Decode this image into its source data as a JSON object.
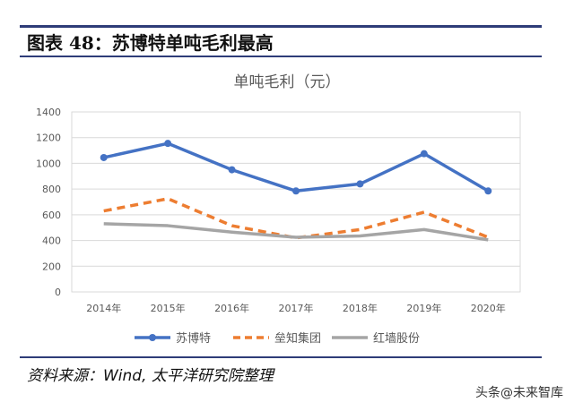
{
  "header": {
    "title": "图表 48：苏博特单吨毛利最高"
  },
  "footer": {
    "source": "资料来源：Wind, 太平洋研究院整理",
    "watermark": "头条@未来智库"
  },
  "chart_data": {
    "type": "line",
    "title": "单吨毛利（元）",
    "categories": [
      "2014年",
      "2015年",
      "2016年",
      "2017年",
      "2018年",
      "2019年",
      "2020年"
    ],
    "ylim": [
      0,
      1400
    ],
    "yticks": [
      0,
      200,
      400,
      600,
      800,
      1000,
      1200,
      1400
    ],
    "grid": true,
    "legend": "bottom",
    "series": [
      {
        "name": "苏博特",
        "values": [
          1045,
          1155,
          950,
          785,
          840,
          1075,
          785
        ],
        "color": "#4472c4",
        "style": "solid-marker"
      },
      {
        "name": "垒知集团",
        "values": [
          630,
          725,
          515,
          420,
          485,
          620,
          425
        ],
        "color": "#ed7d31",
        "style": "dashed"
      },
      {
        "name": "红墙股份",
        "values": [
          530,
          515,
          465,
          425,
          435,
          485,
          405
        ],
        "color": "#a5a5a5",
        "style": "solid"
      }
    ]
  }
}
